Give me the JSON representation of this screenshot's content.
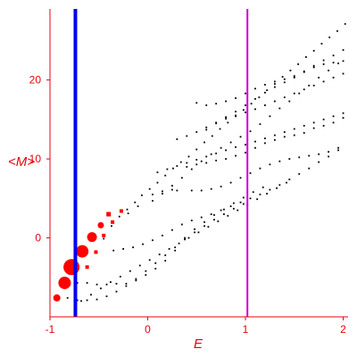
{
  "chart_data": {
    "type": "scatter",
    "xlabel": "E",
    "ylabel": "<M>",
    "xlim": [
      -1.0,
      2.05
    ],
    "ylim": [
      -10,
      29
    ],
    "x_ticks": [
      -1,
      0,
      1,
      2
    ],
    "y_ticks": [
      0,
      10,
      20
    ],
    "x_tick_labels": [
      "-1",
      "0",
      "1",
      "2"
    ],
    "y_tick_labels": [
      "0",
      "10",
      "20"
    ],
    "grid": false,
    "legend": "none",
    "colors": {
      "axis": "#e8000b",
      "points": "#000000",
      "highlight": "#ff0000",
      "line_blue": "#0000ee",
      "line_magenta": "#cc00cc"
    },
    "vertical_lines": [
      {
        "x": -0.74,
        "color": "#0000ee"
      },
      {
        "x": 1.02,
        "color": "#cc00cc"
      }
    ],
    "highlighted_points": [
      {
        "x": -0.93,
        "y": -7.6,
        "size": 4
      },
      {
        "x": -0.85,
        "y": -5.7,
        "size": 7
      },
      {
        "x": -0.78,
        "y": -3.7,
        "size": 9
      },
      {
        "x": -0.67,
        "y": -1.7,
        "size": 7
      },
      {
        "x": -0.57,
        "y": 0.1,
        "size": 5.5
      },
      {
        "x": -0.48,
        "y": 1.6,
        "size": 3.5
      },
      {
        "x": -0.4,
        "y": 3.0,
        "size": 2.5
      },
      {
        "x": -0.62,
        "y": -3.7,
        "size": 2
      },
      {
        "x": -0.53,
        "y": -1.8,
        "size": 2
      },
      {
        "x": -0.45,
        "y": 0.3,
        "size": 2
      },
      {
        "x": -0.36,
        "y": 2.0,
        "size": 2
      },
      {
        "x": -0.27,
        "y": 3.4,
        "size": 2
      }
    ],
    "series": [
      {
        "points": [
          [
            -0.62,
            -3.7
          ],
          [
            -0.53,
            -1.8
          ],
          [
            -0.45,
            -0.1
          ],
          [
            -0.37,
            1.5
          ],
          [
            -0.29,
            2.7
          ],
          [
            -0.21,
            3.6
          ],
          [
            -0.13,
            4.5
          ],
          [
            -0.06,
            5.4
          ],
          [
            0.02,
            6.2
          ],
          [
            0.1,
            7.0
          ],
          [
            0.18,
            7.9
          ],
          [
            0.26,
            8.8
          ],
          [
            0.34,
            9.6
          ],
          [
            0.42,
            10.3
          ],
          [
            0.5,
            11.2
          ],
          [
            0.58,
            12.1
          ],
          [
            0.66,
            12.9
          ],
          [
            0.74,
            13.8
          ],
          [
            0.82,
            14.6
          ],
          [
            0.9,
            15.4
          ],
          [
            0.98,
            16.2
          ],
          [
            1.06,
            17.0
          ],
          [
            1.14,
            17.8
          ],
          [
            1.22,
            18.7
          ],
          [
            1.3,
            19.5
          ],
          [
            1.38,
            20.4
          ],
          [
            1.46,
            21.2
          ],
          [
            1.54,
            22.0
          ],
          [
            1.62,
            22.9
          ],
          [
            1.7,
            23.7
          ],
          [
            1.78,
            24.6
          ],
          [
            1.86,
            25.4
          ],
          [
            1.94,
            26.2
          ],
          [
            2.02,
            27.1
          ],
          [
            -0.2,
            3.1
          ],
          [
            -0.1,
            4.0
          ],
          [
            0.05,
            4.7
          ],
          [
            0.15,
            5.6
          ],
          [
            0.25,
            6.6
          ],
          [
            0.35,
            7.6
          ],
          [
            0.45,
            8.7
          ],
          [
            0.55,
            9.7
          ],
          [
            0.65,
            10.6
          ],
          [
            0.75,
            11.4
          ],
          [
            0.85,
            12.1
          ],
          [
            0.95,
            12.8
          ],
          [
            1.05,
            13.5
          ],
          [
            1.15,
            14.4
          ],
          [
            1.25,
            15.4
          ],
          [
            1.35,
            16.4
          ],
          [
            1.45,
            17.3
          ],
          [
            1.55,
            18.3
          ],
          [
            1.65,
            19.3
          ],
          [
            1.75,
            20.3
          ],
          [
            1.85,
            21.2
          ],
          [
            1.95,
            22.1
          ],
          [
            0.6,
            13.7
          ],
          [
            0.7,
            14.5
          ],
          [
            0.8,
            15.3
          ],
          [
            0.9,
            16.0
          ],
          [
            1.0,
            16.8
          ],
          [
            1.1,
            17.6
          ],
          [
            1.2,
            18.4
          ],
          [
            1.3,
            19.1
          ],
          [
            1.4,
            19.7
          ],
          [
            1.5,
            20.3
          ],
          [
            1.6,
            21.0
          ],
          [
            1.7,
            21.8
          ],
          [
            1.8,
            22.5
          ],
          [
            1.9,
            23.1
          ],
          [
            2.0,
            23.8
          ],
          [
            0.4,
            9.0
          ],
          [
            0.5,
            9.3
          ],
          [
            0.6,
            9.5
          ],
          [
            0.7,
            9.8
          ],
          [
            0.8,
            10.0
          ],
          [
            0.9,
            10.4
          ],
          [
            1.0,
            10.8
          ],
          [
            1.1,
            11.4
          ],
          [
            1.2,
            12.0
          ],
          [
            1.3,
            12.4
          ],
          [
            1.4,
            12.8
          ],
          [
            1.5,
            13.0
          ],
          [
            1.6,
            13.3
          ],
          [
            1.7,
            13.9
          ],
          [
            1.8,
            14.2
          ],
          [
            1.9,
            14.6
          ],
          [
            2.0,
            15.2
          ],
          [
            0.05,
            5.5
          ],
          [
            0.15,
            5.9
          ],
          [
            0.25,
            6.1
          ],
          [
            0.3,
            6.0
          ],
          [
            0.45,
            6.0
          ],
          [
            0.55,
            6.0
          ],
          [
            0.65,
            6.2
          ],
          [
            0.75,
            6.5
          ],
          [
            0.85,
            7.0
          ],
          [
            0.95,
            7.6
          ],
          [
            1.05,
            8.2
          ],
          [
            1.15,
            8.8
          ],
          [
            1.25,
            9.3
          ],
          [
            1.35,
            9.7
          ],
          [
            1.45,
            10.0
          ],
          [
            1.55,
            10.2
          ],
          [
            1.65,
            10.4
          ],
          [
            1.75,
            10.6
          ],
          [
            1.85,
            10.9
          ],
          [
            1.95,
            11.4
          ],
          [
            -0.35,
            -1.6
          ],
          [
            -0.25,
            -1.4
          ],
          [
            -0.15,
            -1.2
          ],
          [
            -0.05,
            -0.8
          ],
          [
            0.05,
            -0.3
          ],
          [
            0.15,
            0.3
          ],
          [
            0.25,
            1.0
          ],
          [
            0.35,
            1.7
          ],
          [
            0.45,
            2.2
          ],
          [
            0.55,
            2.6
          ],
          [
            0.65,
            3.0
          ],
          [
            0.75,
            3.5
          ],
          [
            0.85,
            4.0
          ],
          [
            0.95,
            4.5
          ],
          [
            1.05,
            5.0
          ],
          [
            1.15,
            5.5
          ],
          [
            1.25,
            6.1
          ],
          [
            1.35,
            6.7
          ],
          [
            1.45,
            7.4
          ],
          [
            1.55,
            8.1
          ],
          [
            1.65,
            8.8
          ],
          [
            1.75,
            9.6
          ],
          [
            1.85,
            10.3
          ],
          [
            1.95,
            11.1
          ],
          [
            -0.72,
            -5.7
          ],
          [
            -0.62,
            -5.7
          ],
          [
            -0.52,
            -5.9
          ],
          [
            -0.42,
            -5.9
          ],
          [
            -0.32,
            -5.8
          ],
          [
            -0.22,
            -5.8
          ],
          [
            -0.12,
            -5.4
          ],
          [
            -0.02,
            -4.7
          ],
          [
            0.08,
            -3.9
          ],
          [
            0.18,
            -2.9
          ],
          [
            0.28,
            -1.6
          ],
          [
            0.38,
            0.0
          ],
          [
            0.48,
            1.1
          ],
          [
            0.58,
            2.0
          ],
          [
            0.68,
            2.9
          ],
          [
            0.78,
            3.6
          ],
          [
            0.88,
            4.4
          ],
          [
            0.98,
            5.1
          ],
          [
            1.08,
            5.8
          ],
          [
            1.18,
            6.4
          ],
          [
            -0.82,
            -7.6
          ],
          [
            -0.72,
            -7.9
          ],
          [
            -0.62,
            -7.9
          ],
          [
            -0.52,
            -7.8
          ],
          [
            -0.42,
            -7.4
          ],
          [
            -0.32,
            -6.8
          ],
          [
            -0.22,
            -6.1
          ],
          [
            -0.12,
            -5.2
          ],
          [
            -0.02,
            -4.2
          ],
          [
            0.08,
            -3.2
          ],
          [
            0.18,
            -2.2
          ],
          [
            0.28,
            -1.2
          ],
          [
            0.38,
            -0.2
          ],
          [
            0.48,
            0.7
          ],
          [
            0.58,
            1.5
          ],
          [
            0.68,
            2.3
          ],
          [
            0.78,
            3.0
          ],
          [
            0.88,
            3.7
          ],
          [
            0.98,
            4.3
          ],
          [
            -0.68,
            -8.0
          ],
          [
            -0.58,
            -7.2
          ],
          [
            -0.48,
            -6.4
          ],
          [
            -0.38,
            -5.6
          ],
          [
            -0.28,
            -4.9
          ],
          [
            -0.18,
            -4.2
          ],
          [
            -0.08,
            -3.5
          ],
          [
            0.02,
            -2.8
          ],
          [
            0.12,
            -2.1
          ],
          [
            0.22,
            -1.4
          ],
          [
            0.32,
            -0.7
          ],
          [
            0.42,
            0.0
          ],
          [
            0.52,
            0.7
          ],
          [
            0.62,
            1.4
          ],
          [
            0.72,
            2.1
          ],
          [
            0.82,
            2.8
          ],
          [
            0.92,
            3.5
          ],
          [
            1.02,
            4.2
          ],
          [
            1.12,
            4.9
          ],
          [
            1.22,
            5.6
          ],
          [
            1.32,
            6.3
          ],
          [
            1.42,
            7.0
          ],
          [
            0.5,
            17.1
          ],
          [
            0.6,
            16.8
          ],
          [
            0.7,
            17.0
          ],
          [
            0.8,
            17.3
          ],
          [
            0.9,
            17.7
          ],
          [
            1.0,
            18.3
          ],
          [
            1.1,
            18.9
          ],
          [
            1.2,
            19.4
          ],
          [
            1.3,
            19.8
          ],
          [
            1.4,
            20.1
          ],
          [
            1.5,
            20.5
          ],
          [
            1.6,
            21.1
          ],
          [
            1.7,
            21.6
          ],
          [
            1.8,
            22.0
          ],
          [
            1.9,
            22.2
          ],
          [
            2.0,
            22.4
          ],
          [
            0.3,
            12.5
          ],
          [
            0.4,
            12.9
          ],
          [
            0.5,
            13.4
          ],
          [
            0.6,
            14.0
          ],
          [
            0.7,
            14.6
          ],
          [
            0.8,
            15.1
          ],
          [
            0.9,
            15.5
          ],
          [
            1.0,
            15.9
          ],
          [
            1.1,
            16.3
          ],
          [
            1.2,
            16.8
          ],
          [
            1.3,
            17.3
          ],
          [
            1.4,
            17.8
          ],
          [
            1.5,
            18.3
          ],
          [
            1.6,
            18.8
          ],
          [
            1.7,
            19.3
          ],
          [
            1.8,
            19.8
          ],
          [
            1.9,
            20.3
          ],
          [
            2.0,
            20.8
          ],
          [
            0.1,
            8.3
          ],
          [
            0.2,
            8.7
          ],
          [
            0.3,
            9.1
          ],
          [
            0.4,
            9.5
          ],
          [
            0.5,
            9.9
          ],
          [
            0.6,
            10.3
          ],
          [
            0.7,
            10.7
          ],
          [
            0.8,
            11.1
          ],
          [
            0.9,
            11.5
          ],
          [
            1.0,
            11.8
          ],
          [
            1.1,
            12.2
          ],
          [
            1.2,
            12.6
          ],
          [
            1.3,
            13.0
          ],
          [
            1.4,
            13.4
          ],
          [
            1.5,
            13.8
          ],
          [
            1.6,
            14.2
          ],
          [
            1.7,
            14.6
          ],
          [
            1.8,
            15.0
          ],
          [
            1.9,
            15.4
          ],
          [
            2.0,
            15.8
          ]
        ]
      }
    ]
  }
}
